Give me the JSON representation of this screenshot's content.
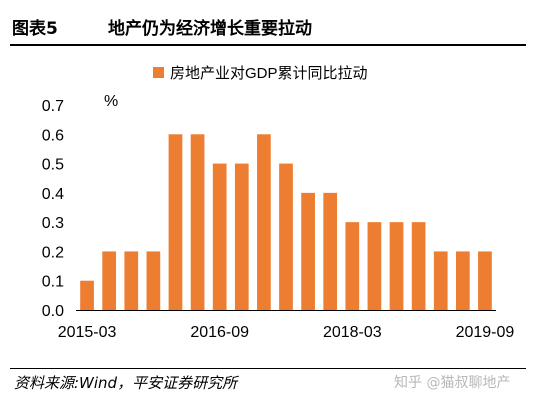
{
  "header": {
    "figure_label": "图表5",
    "title": "地产仍为经济增长重要拉动"
  },
  "chart_data": {
    "type": "bar",
    "title": "",
    "ylabel": "%",
    "xlabel": "",
    "ylim": [
      0,
      0.7
    ],
    "yticks": [
      0.0,
      0.1,
      0.2,
      0.3,
      0.4,
      0.5,
      0.6,
      0.7
    ],
    "ytick_labels": [
      "0.0",
      "0.1",
      "0.2",
      "0.3",
      "0.4",
      "0.5",
      "0.6",
      "0.7"
    ],
    "categories": [
      "2015-03",
      "2015-06",
      "2015-09",
      "2015-12",
      "2016-03",
      "2016-06",
      "2016-09",
      "2016-12",
      "2017-03",
      "2017-06",
      "2017-09",
      "2017-12",
      "2018-03",
      "2018-06",
      "2018-09",
      "2018-12",
      "2019-03",
      "2019-06",
      "2019-09"
    ],
    "xtick_labels": [
      {
        "index": 0,
        "label": "2015-03"
      },
      {
        "index": 6,
        "label": "2016-09"
      },
      {
        "index": 12,
        "label": "2018-03"
      },
      {
        "index": 18,
        "label": "2019-09"
      }
    ],
    "series": [
      {
        "name": "房地产业对GDP累计同比拉动",
        "color": "#ED7D31",
        "values": [
          0.1,
          0.2,
          0.2,
          0.2,
          0.6,
          0.6,
          0.5,
          0.5,
          0.6,
          0.5,
          0.4,
          0.4,
          0.3,
          0.3,
          0.3,
          0.3,
          0.2,
          0.2,
          0.2
        ]
      }
    ],
    "legend_position": "top",
    "grid": false
  },
  "footer": {
    "source": "资料来源:Wind，平安证券研究所",
    "watermark": "知乎 @猫叔聊地产"
  }
}
